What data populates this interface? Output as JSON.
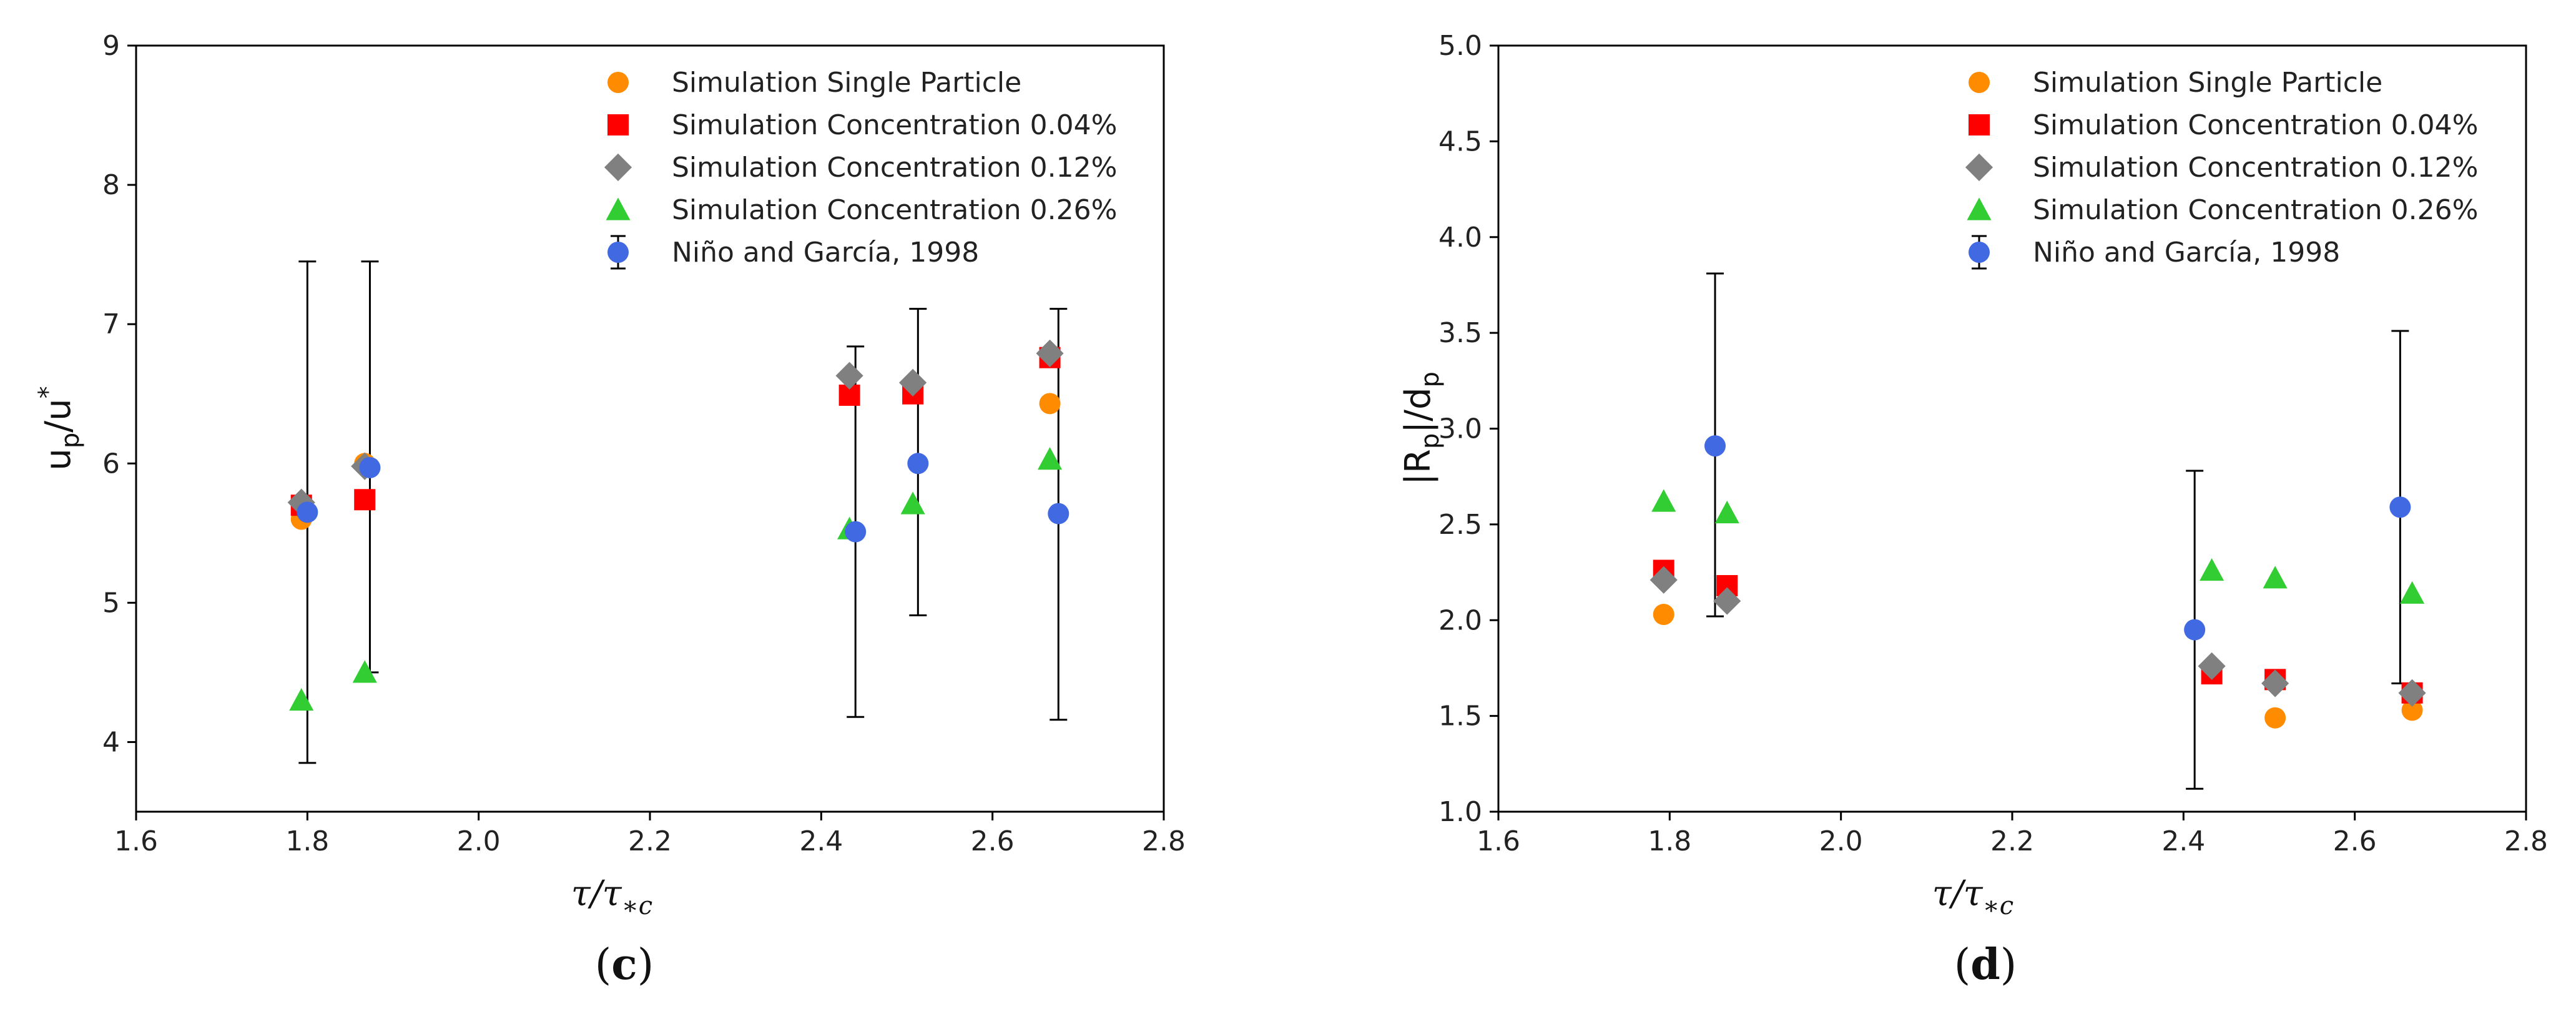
{
  "colors": {
    "single": "#ff8c00",
    "c004": "#ff0000",
    "c012": "#808080",
    "c026": "#32cd32",
    "exp": "#4169e1"
  },
  "chart_data": [
    {
      "type": "scatter",
      "panel_label_open": "(",
      "panel_label_letter": "c",
      "panel_label_close": ")",
      "xlabel_tau": "τ/τ",
      "xlabel_sub": "∗c",
      "ylabel_main": "u",
      "ylabel_sub": "p",
      "ylabel_mid": "/u",
      "ylabel_sup": "*",
      "xlim": [
        1.6,
        2.8
      ],
      "ylim": [
        3.5,
        9
      ],
      "xticks": [
        1.6,
        1.8,
        2.0,
        2.2,
        2.4,
        2.6,
        2.8
      ],
      "xtick_labels": [
        "1.6",
        "1.8",
        "2.0",
        "2.2",
        "2.4",
        "2.6",
        "2.8"
      ],
      "yticks": [
        4,
        5,
        6,
        7,
        8,
        9
      ],
      "ytick_labels": [
        "4",
        "5",
        "6",
        "7",
        "8",
        "9"
      ],
      "legend_position": "top-right",
      "series": [
        {
          "name": "Simulation Single Particle",
          "marker": "circle",
          "color_key": "single",
          "x": [
            1.793,
            1.867,
            2.667
          ],
          "y": [
            5.6,
            6.0,
            6.43
          ]
        },
        {
          "name": "Simulation Concentration 0.04%",
          "marker": "square",
          "color_key": "c004",
          "x": [
            1.793,
            1.867,
            2.433,
            2.507,
            2.667
          ],
          "y": [
            5.7,
            5.74,
            6.49,
            6.5,
            6.76
          ]
        },
        {
          "name": "Simulation Concentration 0.12%",
          "marker": "diamond",
          "color_key": "c012",
          "x": [
            1.793,
            1.867,
            2.433,
            2.507,
            2.667
          ],
          "y": [
            5.72,
            5.98,
            6.63,
            6.58,
            6.79
          ]
        },
        {
          "name": "Simulation Concentration 0.26%",
          "marker": "triangle",
          "color_key": "c026",
          "x": [
            1.793,
            1.867,
            2.433,
            2.507,
            2.667
          ],
          "y": [
            4.3,
            4.5,
            5.53,
            5.71,
            6.03
          ]
        },
        {
          "name": "Niño and García, 1998",
          "marker": "circle-errorbar",
          "color_key": "exp",
          "x": [
            1.8,
            1.873,
            2.44,
            2.513,
            2.677
          ],
          "y": [
            5.65,
            5.97,
            5.51,
            6.0,
            5.64
          ],
          "yerr_low": [
            3.85,
            4.5,
            4.18,
            4.91,
            4.16
          ],
          "yerr_high": [
            7.45,
            7.45,
            6.84,
            7.11,
            7.11
          ]
        }
      ]
    },
    {
      "type": "scatter",
      "panel_label_open": "(",
      "panel_label_letter": "d",
      "panel_label_close": ")",
      "xlabel_tau": "τ/τ",
      "xlabel_sub": "∗c",
      "ylabel_main": "|R",
      "ylabel_sub": "p",
      "ylabel_mid": "|/d",
      "ylabel_sub2": "p",
      "xlim": [
        1.6,
        2.8
      ],
      "ylim": [
        1.0,
        5.0
      ],
      "xticks": [
        1.6,
        1.8,
        2.0,
        2.2,
        2.4,
        2.6,
        2.8
      ],
      "xtick_labels": [
        "1.6",
        "1.8",
        "2.0",
        "2.2",
        "2.4",
        "2.6",
        "2.8"
      ],
      "yticks": [
        1.0,
        1.5,
        2.0,
        2.5,
        3.0,
        3.5,
        4.0,
        4.5,
        5.0
      ],
      "ytick_labels": [
        "1.0",
        "1.5",
        "2.0",
        "2.5",
        "3.0",
        "3.5",
        "4.0",
        "4.5",
        "5.0"
      ],
      "legend_position": "top-right",
      "series": [
        {
          "name": "Simulation Single Particle",
          "marker": "circle",
          "color_key": "single",
          "x": [
            1.793,
            2.507,
            2.667
          ],
          "y": [
            2.03,
            1.49,
            1.53
          ]
        },
        {
          "name": "Simulation Concentration 0.04%",
          "marker": "square",
          "color_key": "c004",
          "x": [
            1.793,
            1.867,
            2.433,
            2.507,
            2.667
          ],
          "y": [
            2.26,
            2.18,
            1.72,
            1.69,
            1.62
          ]
        },
        {
          "name": "Simulation Concentration 0.12%",
          "marker": "diamond",
          "color_key": "c012",
          "x": [
            1.793,
            1.867,
            2.433,
            2.507,
            2.667
          ],
          "y": [
            2.21,
            2.1,
            1.76,
            1.67,
            1.62
          ]
        },
        {
          "name": "Simulation Concentration 0.26%",
          "marker": "triangle",
          "color_key": "c026",
          "x": [
            1.793,
            1.867,
            2.433,
            2.507,
            2.667
          ],
          "y": [
            2.62,
            2.56,
            2.26,
            2.22,
            2.14
          ]
        },
        {
          "name": "Niño and García, 1998",
          "marker": "circle-errorbar",
          "color_key": "exp",
          "x": [
            1.853,
            2.413,
            2.653
          ],
          "y": [
            2.91,
            1.95,
            2.59
          ],
          "yerr_low": [
            2.02,
            1.12,
            1.67
          ],
          "yerr_high": [
            3.81,
            2.78,
            3.51
          ]
        }
      ]
    }
  ]
}
